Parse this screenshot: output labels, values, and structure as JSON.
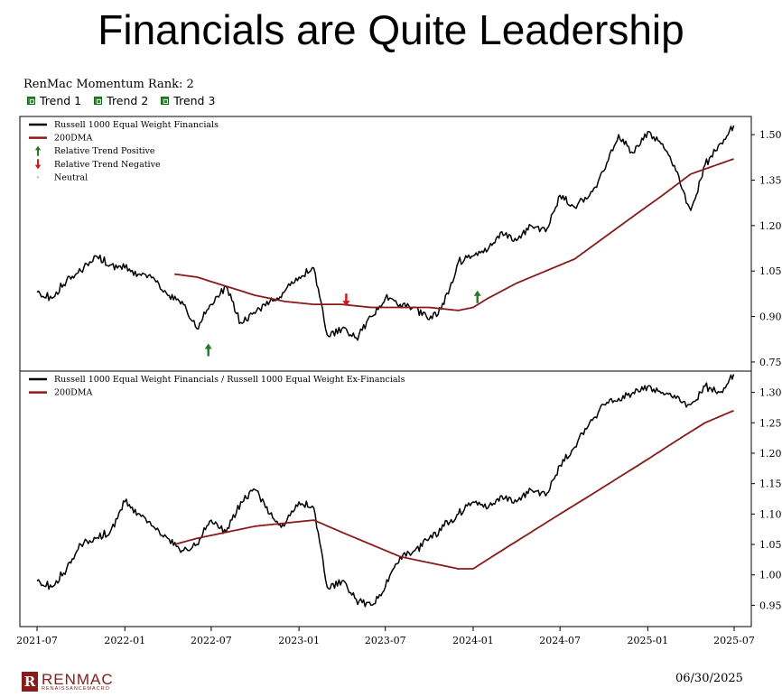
{
  "header": {
    "title": "Financials are Quite Leadership",
    "rank_label": "RenMac Momentum Rank: 2",
    "trends": [
      "Trend 1",
      "Trend 2",
      "Trend 3"
    ]
  },
  "footer": {
    "logo_name": "RENMAC",
    "logo_sub": "RENAISSANCEMACRO",
    "date": "06/30/2025"
  },
  "colors": {
    "price": "#000000",
    "dma": "#8b1a1a",
    "positive": "#1e7b1e",
    "negative": "#e01010",
    "neutral": "#d9a066",
    "trend_box": "#2e8b2e"
  },
  "chart_data": [
    {
      "type": "line",
      "panel": "top",
      "legend": [
        "Russell 1000 Equal Weight Financials",
        "200DMA",
        "Relative Trend Positive",
        "Relative Trend Negative",
        "Neutral"
      ],
      "legend_placement": "top-left",
      "y_axis_side": "right",
      "ylim": [
        0.72,
        1.56
      ],
      "yticks": [
        0.75,
        0.9,
        1.05,
        1.2,
        1.35,
        1.5
      ],
      "ytick_labels": [
        "0.75",
        "0.90",
        "1.05",
        "1.20",
        "1.35",
        "1.50"
      ],
      "series": [
        {
          "name": "Russell 1000 Equal Weight Financials",
          "color": "#000000",
          "x": [
            "2021-07-01",
            "2021-08-01",
            "2021-09-01",
            "2021-10-01",
            "2021-11-01",
            "2021-12-01",
            "2022-01-01",
            "2022-02-01",
            "2022-03-01",
            "2022-04-01",
            "2022-05-01",
            "2022-06-01",
            "2022-07-01",
            "2022-08-01",
            "2022-09-01",
            "2022-10-01",
            "2022-11-01",
            "2022-12-01",
            "2023-01-01",
            "2023-02-01",
            "2023-03-01",
            "2023-04-01",
            "2023-05-01",
            "2023-06-01",
            "2023-07-01",
            "2023-08-01",
            "2023-09-01",
            "2023-10-01",
            "2023-11-01",
            "2023-12-01",
            "2024-01-01",
            "2024-02-01",
            "2024-03-01",
            "2024-04-01",
            "2024-05-01",
            "2024-06-01",
            "2024-07-01",
            "2024-08-01",
            "2024-09-01",
            "2024-10-01",
            "2024-11-01",
            "2024-12-01",
            "2025-01-01",
            "2025-02-01",
            "2025-03-01",
            "2025-04-01",
            "2025-05-01",
            "2025-06-01",
            "2025-06-30"
          ],
          "values": [
            0.98,
            0.96,
            1.02,
            1.05,
            1.1,
            1.07,
            1.06,
            1.04,
            1.03,
            0.97,
            0.95,
            0.86,
            0.94,
            1.0,
            0.88,
            0.91,
            0.95,
            0.98,
            1.03,
            1.06,
            0.84,
            0.86,
            0.83,
            0.9,
            0.96,
            0.94,
            0.93,
            0.89,
            0.94,
            1.08,
            1.1,
            1.12,
            1.18,
            1.15,
            1.2,
            1.18,
            1.3,
            1.26,
            1.3,
            1.38,
            1.5,
            1.44,
            1.51,
            1.47,
            1.38,
            1.25,
            1.4,
            1.47,
            1.53
          ]
        },
        {
          "name": "200DMA",
          "color": "#8b1a1a",
          "x": [
            "2022-04-15",
            "2022-06-01",
            "2022-08-01",
            "2022-10-01",
            "2022-12-01",
            "2023-02-01",
            "2023-04-01",
            "2023-06-01",
            "2023-08-01",
            "2023-10-01",
            "2023-12-01",
            "2024-01-01",
            "2024-02-01",
            "2024-04-01",
            "2024-06-01",
            "2024-08-01",
            "2024-10-01",
            "2024-12-01",
            "2025-02-01",
            "2025-04-01",
            "2025-06-30"
          ],
          "values": [
            1.04,
            1.03,
            1.0,
            0.97,
            0.95,
            0.94,
            0.94,
            0.93,
            0.93,
            0.93,
            0.92,
            0.93,
            0.96,
            1.01,
            1.05,
            1.09,
            1.16,
            1.23,
            1.3,
            1.37,
            1.42
          ]
        }
      ],
      "markers": [
        {
          "type": "Relative Trend Positive",
          "x": "2022-06-25",
          "y": 0.79,
          "direction": "up"
        },
        {
          "type": "Relative Trend Negative",
          "x": "2023-04-10",
          "y": 0.955,
          "direction": "down"
        },
        {
          "type": "Relative Trend Positive",
          "x": "2024-01-10",
          "y": 0.965,
          "direction": "up"
        }
      ]
    },
    {
      "type": "line",
      "panel": "bottom",
      "legend": [
        "Russell 1000 Equal Weight Financials / Russell 1000 Equal Weight Ex-Financials",
        "200DMA"
      ],
      "legend_placement": "top-left",
      "y_axis_side": "right",
      "ylim": [
        0.915,
        1.335
      ],
      "yticks": [
        0.95,
        1.0,
        1.05,
        1.1,
        1.15,
        1.2,
        1.25,
        1.3
      ],
      "ytick_labels": [
        "0.95",
        "1.00",
        "1.05",
        "1.10",
        "1.15",
        "1.20",
        "1.25",
        "1.30"
      ],
      "xticks": [
        "2021-07",
        "2022-01",
        "2022-07",
        "2023-01",
        "2023-07",
        "2024-01",
        "2024-07",
        "2025-01",
        "2025-07"
      ],
      "series": [
        {
          "name": "Russell 1000 Equal Weight Financials / Russell 1000 Equal Weight Ex-Financials",
          "color": "#000000",
          "x": [
            "2021-07-01",
            "2021-08-01",
            "2021-09-01",
            "2021-10-01",
            "2021-11-01",
            "2021-12-01",
            "2022-01-01",
            "2022-02-01",
            "2022-03-01",
            "2022-04-01",
            "2022-05-01",
            "2022-06-01",
            "2022-07-01",
            "2022-08-01",
            "2022-09-01",
            "2022-10-01",
            "2022-11-01",
            "2022-12-01",
            "2023-01-01",
            "2023-02-01",
            "2023-03-01",
            "2023-04-01",
            "2023-05-01",
            "2023-06-01",
            "2023-07-01",
            "2023-08-01",
            "2023-09-01",
            "2023-10-01",
            "2023-11-01",
            "2023-12-01",
            "2024-01-01",
            "2024-02-01",
            "2024-03-01",
            "2024-04-01",
            "2024-05-01",
            "2024-06-01",
            "2024-07-01",
            "2024-08-01",
            "2024-09-01",
            "2024-10-01",
            "2024-11-01",
            "2024-12-01",
            "2025-01-01",
            "2025-02-01",
            "2025-03-01",
            "2025-04-01",
            "2025-05-01",
            "2025-06-01",
            "2025-06-30"
          ],
          "values": [
            0.99,
            0.98,
            1.01,
            1.05,
            1.06,
            1.07,
            1.12,
            1.1,
            1.08,
            1.06,
            1.04,
            1.05,
            1.09,
            1.07,
            1.12,
            1.14,
            1.1,
            1.08,
            1.12,
            1.11,
            0.98,
            0.99,
            0.96,
            0.95,
            0.98,
            1.03,
            1.04,
            1.06,
            1.08,
            1.1,
            1.12,
            1.11,
            1.13,
            1.12,
            1.14,
            1.13,
            1.18,
            1.21,
            1.25,
            1.28,
            1.29,
            1.3,
            1.31,
            1.3,
            1.29,
            1.28,
            1.31,
            1.3,
            1.33
          ]
        },
        {
          "name": "200DMA",
          "color": "#8b1a1a",
          "x": [
            "2022-04-15",
            "2022-06-01",
            "2022-08-01",
            "2022-10-01",
            "2022-12-01",
            "2023-02-01",
            "2023-04-01",
            "2023-06-01",
            "2023-08-01",
            "2023-10-01",
            "2023-12-01",
            "2024-01-01",
            "2024-03-01",
            "2024-05-01",
            "2024-07-01",
            "2024-09-01",
            "2024-11-01",
            "2025-01-01",
            "2025-03-01",
            "2025-05-01",
            "2025-06-30"
          ],
          "values": [
            1.05,
            1.06,
            1.07,
            1.08,
            1.085,
            1.09,
            1.07,
            1.05,
            1.03,
            1.02,
            1.01,
            1.01,
            1.04,
            1.07,
            1.1,
            1.13,
            1.16,
            1.19,
            1.22,
            1.25,
            1.27
          ]
        }
      ]
    }
  ]
}
